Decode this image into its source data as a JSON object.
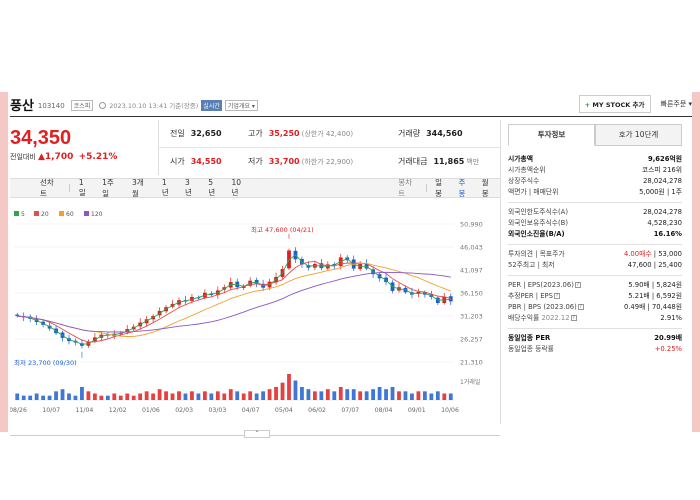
{
  "header": {
    "stock_name": "풍산",
    "stock_code": "103140",
    "market_tag": "코스피",
    "datetime": "2023.10.10 13:41 기준(장중)",
    "live_tag": "실시간",
    "info_tag": "기업개요 ▾",
    "mystock_label": "MY STOCK 추가",
    "mystock_plus": "+",
    "fast_order": "빠른주문 ▾"
  },
  "price": {
    "current": "34,350",
    "change_label": "전일대비",
    "change_arrow": "▲",
    "change_value": "1,700",
    "change_pct": "+5.21%"
  },
  "quote": {
    "prev_close_label": "전일",
    "prev_close": "32,650",
    "high_label": "고가",
    "high": "35,250",
    "upper_limit": "(상한가 42,400)",
    "volume_label": "거래량",
    "volume": "344,560",
    "open_label": "시가",
    "open": "34,550",
    "low_label": "저가",
    "low": "33,700",
    "lower_limit": "(하한가 22,900)",
    "amount_label": "거래대금",
    "amount": "11,865",
    "amount_unit": "백만"
  },
  "period_tabs": [
    "선차트",
    "1일",
    "1주일",
    "3개월",
    "1년",
    "3년",
    "5년",
    "10년"
  ],
  "chart_types": [
    "봉차트",
    "일봉",
    "주봉",
    "월봉"
  ],
  "colors": {
    "up": "#e02020",
    "down": "#1c5fcf",
    "ma5": "#2aa84a",
    "ma20": "#e05050",
    "ma60": "#f0a030",
    "ma120": "#8a56c8"
  },
  "chart_data": {
    "type": "candlestick",
    "legend": [
      {
        "name": "5",
        "color": "#2aa84a"
      },
      {
        "name": "20",
        "color": "#e05050"
      },
      {
        "name": "60",
        "color": "#f0a030"
      },
      {
        "name": "120",
        "color": "#8a56c8"
      }
    ],
    "y_ticks": [
      "50,990",
      "46,043",
      "41,097",
      "36,150",
      "31,203",
      "26,257",
      "21,310"
    ],
    "ylim": [
      21310,
      50990
    ],
    "x_labels": [
      "08/26",
      "10/07",
      "11/04",
      "12/02",
      "01/06",
      "02/03",
      "03/03",
      "04/07",
      "05/04",
      "06/02",
      "07/07",
      "08/04",
      "09/01",
      "10/06"
    ],
    "high_annotation": "최고 47,600 (04/21)",
    "low_annotation": "최저 23,700 (09/30)",
    "volume_label": "1거래일",
    "weekly_close": [
      31200,
      30900,
      30600,
      29900,
      29300,
      28500,
      27500,
      26500,
      25800,
      25500,
      24800,
      25600,
      26600,
      27200,
      27000,
      27400,
      27500,
      28400,
      28900,
      29800,
      30500,
      31200,
      32300,
      33100,
      33800,
      34600,
      34300,
      35300,
      35100,
      36200,
      35700,
      36700,
      37400,
      38500,
      37400,
      37700,
      38800,
      38200,
      37300,
      38600,
      39600,
      41300,
      45300,
      43400,
      42300,
      41600,
      42400,
      41500,
      42300,
      42100,
      43800,
      43200,
      41400,
      42400,
      41400,
      40200,
      39300,
      38500,
      36600,
      37400,
      36300,
      35800,
      36400,
      35800,
      35300,
      34000,
      35300,
      34350
    ],
    "volume": [
      3,
      2,
      2,
      3,
      2,
      2,
      4,
      5,
      3,
      2,
      6,
      4,
      3,
      2,
      2,
      3,
      2,
      3,
      2,
      3,
      4,
      3,
      5,
      4,
      3,
      4,
      3,
      4,
      3,
      4,
      3,
      4,
      3,
      5,
      4,
      3,
      4,
      3,
      4,
      5,
      6,
      8,
      12,
      9,
      6,
      5,
      4,
      4,
      5,
      4,
      6,
      5,
      5,
      4,
      4,
      5,
      6,
      5,
      6,
      4,
      4,
      3,
      4,
      4,
      3,
      4,
      3,
      3
    ]
  },
  "right_panel": {
    "tab_invest": "투자정보",
    "tab_orderbook": "호가 10단계",
    "market_cap_label": "시가총액",
    "market_cap": "9,626억원",
    "cap_rank_label": "시가총액순위",
    "cap_rank": "코스피 216위",
    "shares_label": "상장주식수",
    "shares": "28,024,278",
    "face_label": "액면가 | 매매단위",
    "face": "5,000원 | 1주",
    "foreign_limit_label": "외국인한도주식수(A)",
    "foreign_limit": "28,024,278",
    "foreign_hold_label": "외국인보유주식수(B)",
    "foreign_hold": "4,528,230",
    "foreign_rate_label": "외국인소진율(B/A)",
    "foreign_rate": "16.16%",
    "opinion_label": "투자의견 | 목표주가",
    "opinion": "4.00매수",
    "target": "53,000",
    "week52_label": "52주최고 | 최저",
    "week52_high": "47,600",
    "week52_low": "25,400",
    "per_label": "PER | EPS(2023.06)",
    "per": "5.90배",
    "eps": "5,824원",
    "est_per_label": "추정PER | EPS",
    "est_per": "5.21배",
    "est_eps": "6,592원",
    "pbr_label": "PBR | BPS (2023.06)",
    "pbr": "0.49배",
    "bps": "70,448원",
    "div_label": "배당수익률",
    "div_year": "2022.12",
    "div": "2.91%",
    "ind_per_label": "동일업종 PER",
    "ind_per": "20.99배",
    "ind_rate_label": "동일업종 등락률",
    "ind_rate": "+0.25%"
  }
}
